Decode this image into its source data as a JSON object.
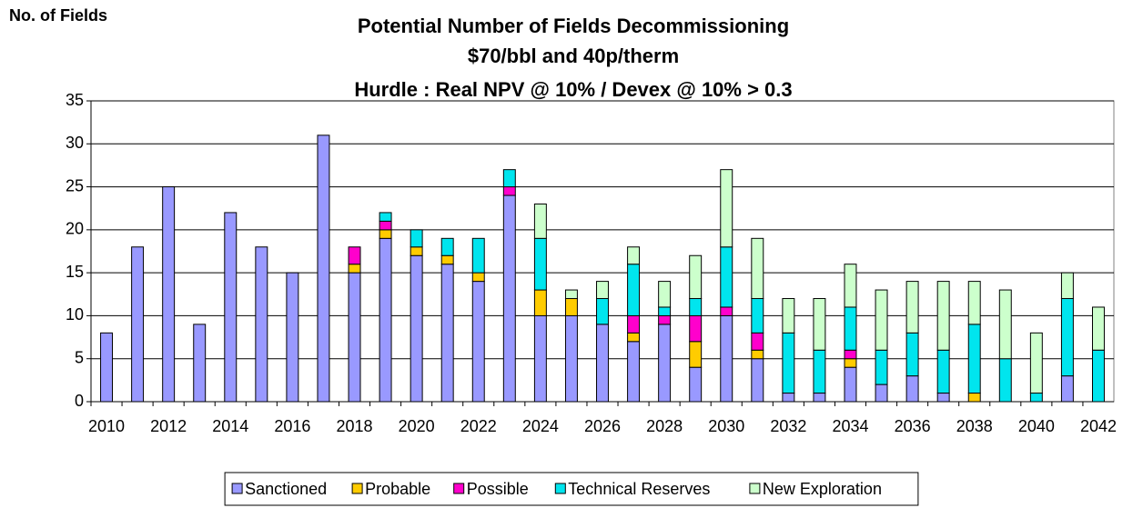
{
  "chart_data": {
    "type": "stacked_bar",
    "title": [
      "Potential Number of Fields Decommissioning",
      "$70/bbl and 40p/therm",
      "Hurdle : Real NPV @ 10% / Devex @ 10% > 0.3"
    ],
    "y_label": "No. of Fields",
    "categories": [
      "2010",
      null,
      "2012",
      null,
      "2014",
      null,
      "2016",
      null,
      "2018",
      null,
      "2020",
      null,
      "2022",
      null,
      "2024",
      null,
      "2026",
      null,
      "2028",
      null,
      "2030",
      null,
      "2032",
      null,
      "2034",
      null,
      "2036",
      null,
      "2038",
      null,
      "2040",
      null,
      "2042"
    ],
    "series": [
      {
        "name": "Sanctioned",
        "color": "#9999ff",
        "values": [
          8,
          18,
          25,
          9,
          22,
          18,
          15,
          31,
          15,
          19,
          17,
          16,
          14,
          24,
          10,
          10,
          9,
          7,
          9,
          4,
          10,
          5,
          1,
          1,
          4,
          2,
          3,
          1,
          0,
          0,
          0,
          3,
          0
        ]
      },
      {
        "name": "Probable",
        "color": "#ffcc00",
        "values": [
          0,
          0,
          0,
          0,
          0,
          0,
          0,
          0,
          1,
          1,
          1,
          1,
          1,
          0,
          3,
          2,
          0,
          1,
          0,
          3,
          0,
          1,
          0,
          0,
          1,
          0,
          0,
          0,
          1,
          0,
          0,
          0,
          0
        ]
      },
      {
        "name": "Possible",
        "color": "#ff00cc",
        "values": [
          0,
          0,
          0,
          0,
          0,
          0,
          0,
          0,
          2,
          1,
          0,
          0,
          0,
          1,
          0,
          0,
          0,
          2,
          1,
          3,
          1,
          2,
          0,
          0,
          1,
          0,
          0,
          0,
          0,
          0,
          0,
          0,
          0
        ]
      },
      {
        "name": "Technical Reserves",
        "color": "#00e5ee",
        "values": [
          0,
          0,
          0,
          0,
          0,
          0,
          0,
          0,
          0,
          1,
          2,
          2,
          4,
          2,
          6,
          0,
          3,
          6,
          1,
          2,
          7,
          4,
          7,
          5,
          5,
          4,
          5,
          5,
          8,
          5,
          1,
          9,
          6
        ]
      },
      {
        "name": "New Exploration",
        "color": "#ccffcc",
        "values": [
          0,
          0,
          0,
          0,
          0,
          0,
          0,
          0,
          0,
          0,
          0,
          0,
          0,
          0,
          4,
          1,
          2,
          2,
          3,
          5,
          9,
          7,
          4,
          6,
          5,
          7,
          6,
          8,
          5,
          8,
          7,
          3,
          5
        ]
      }
    ],
    "ylim": [
      0,
      35
    ],
    "yticks": [
      0,
      5,
      10,
      15,
      20,
      25,
      30,
      35
    ],
    "grid": true,
    "legend": "bottom"
  }
}
